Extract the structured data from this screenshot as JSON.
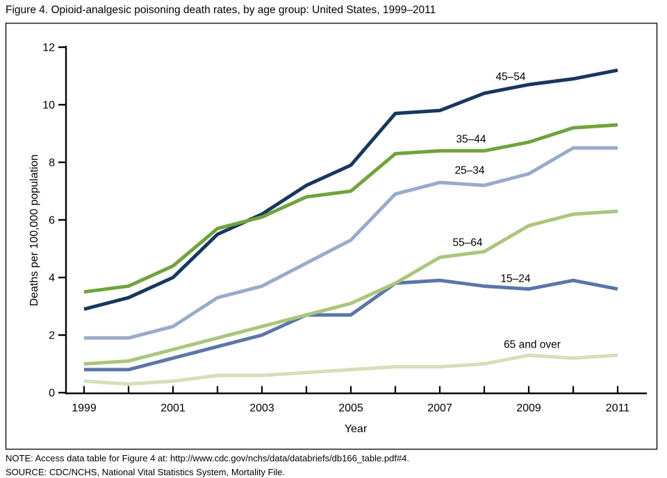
{
  "title": "Figure 4. Opioid-analgesic poisoning death rates, by age group: United States, 1999–2011",
  "note": "NOTE: Access data table for Figure 4 at: http://www.cdc.gov/nchs/data/databriefs/db166_table.pdf#4.",
  "source": "SOURCE: CDC/NCHS, National Vital Statistics System, Mortality File.",
  "chart_data": {
    "type": "line",
    "title": "",
    "xlabel": "Year",
    "ylabel": "Deaths per 100,000 population",
    "x": [
      1999,
      2000,
      2001,
      2002,
      2003,
      2004,
      2005,
      2006,
      2007,
      2008,
      2009,
      2010,
      2011
    ],
    "x_tick_labels": [
      "1999",
      "2001",
      "2003",
      "2005",
      "2007",
      "2009",
      "2011"
    ],
    "x_tick_label_years": [
      1999,
      2001,
      2003,
      2005,
      2007,
      2009,
      2011
    ],
    "ylim": [
      0,
      12
    ],
    "y_ticks": [
      0,
      2,
      4,
      6,
      8,
      10,
      12
    ],
    "grid": false,
    "legend_position": "inline-series-labels",
    "axis_color": "#000000",
    "frame_color": "#1a1a1a",
    "series": [
      {
        "name": "45–54",
        "color": "#17375E",
        "values": [
          2.9,
          3.3,
          4.0,
          5.5,
          6.2,
          7.2,
          7.9,
          9.7,
          9.8,
          10.4,
          10.7,
          10.9,
          11.2
        ]
      },
      {
        "name": "35–44",
        "color": "#70A33D",
        "values": [
          3.5,
          3.7,
          4.4,
          5.7,
          6.1,
          6.8,
          7.0,
          8.3,
          8.4,
          8.4,
          8.7,
          9.2,
          9.3
        ]
      },
      {
        "name": "25–34",
        "color": "#9AAACB",
        "values": [
          1.9,
          1.9,
          2.3,
          3.3,
          3.7,
          4.5,
          5.3,
          6.9,
          7.3,
          7.2,
          7.6,
          8.5,
          8.5
        ]
      },
      {
        "name": "55–64",
        "color": "#ACC57D",
        "values": [
          1.0,
          1.1,
          1.5,
          1.9,
          2.3,
          2.7,
          3.1,
          3.8,
          4.7,
          4.9,
          5.8,
          6.2,
          6.3
        ]
      },
      {
        "name": "15–24",
        "color": "#5B76A8",
        "values": [
          0.8,
          0.8,
          1.2,
          1.6,
          2.0,
          2.7,
          2.7,
          3.8,
          3.9,
          3.7,
          3.6,
          3.9,
          3.6
        ]
      },
      {
        "name": "65 and over",
        "color": "#D3E0BA",
        "values": [
          0.4,
          0.3,
          0.4,
          0.6,
          0.6,
          0.7,
          0.8,
          0.9,
          0.9,
          1.0,
          1.3,
          1.2,
          1.3
        ]
      }
    ]
  }
}
